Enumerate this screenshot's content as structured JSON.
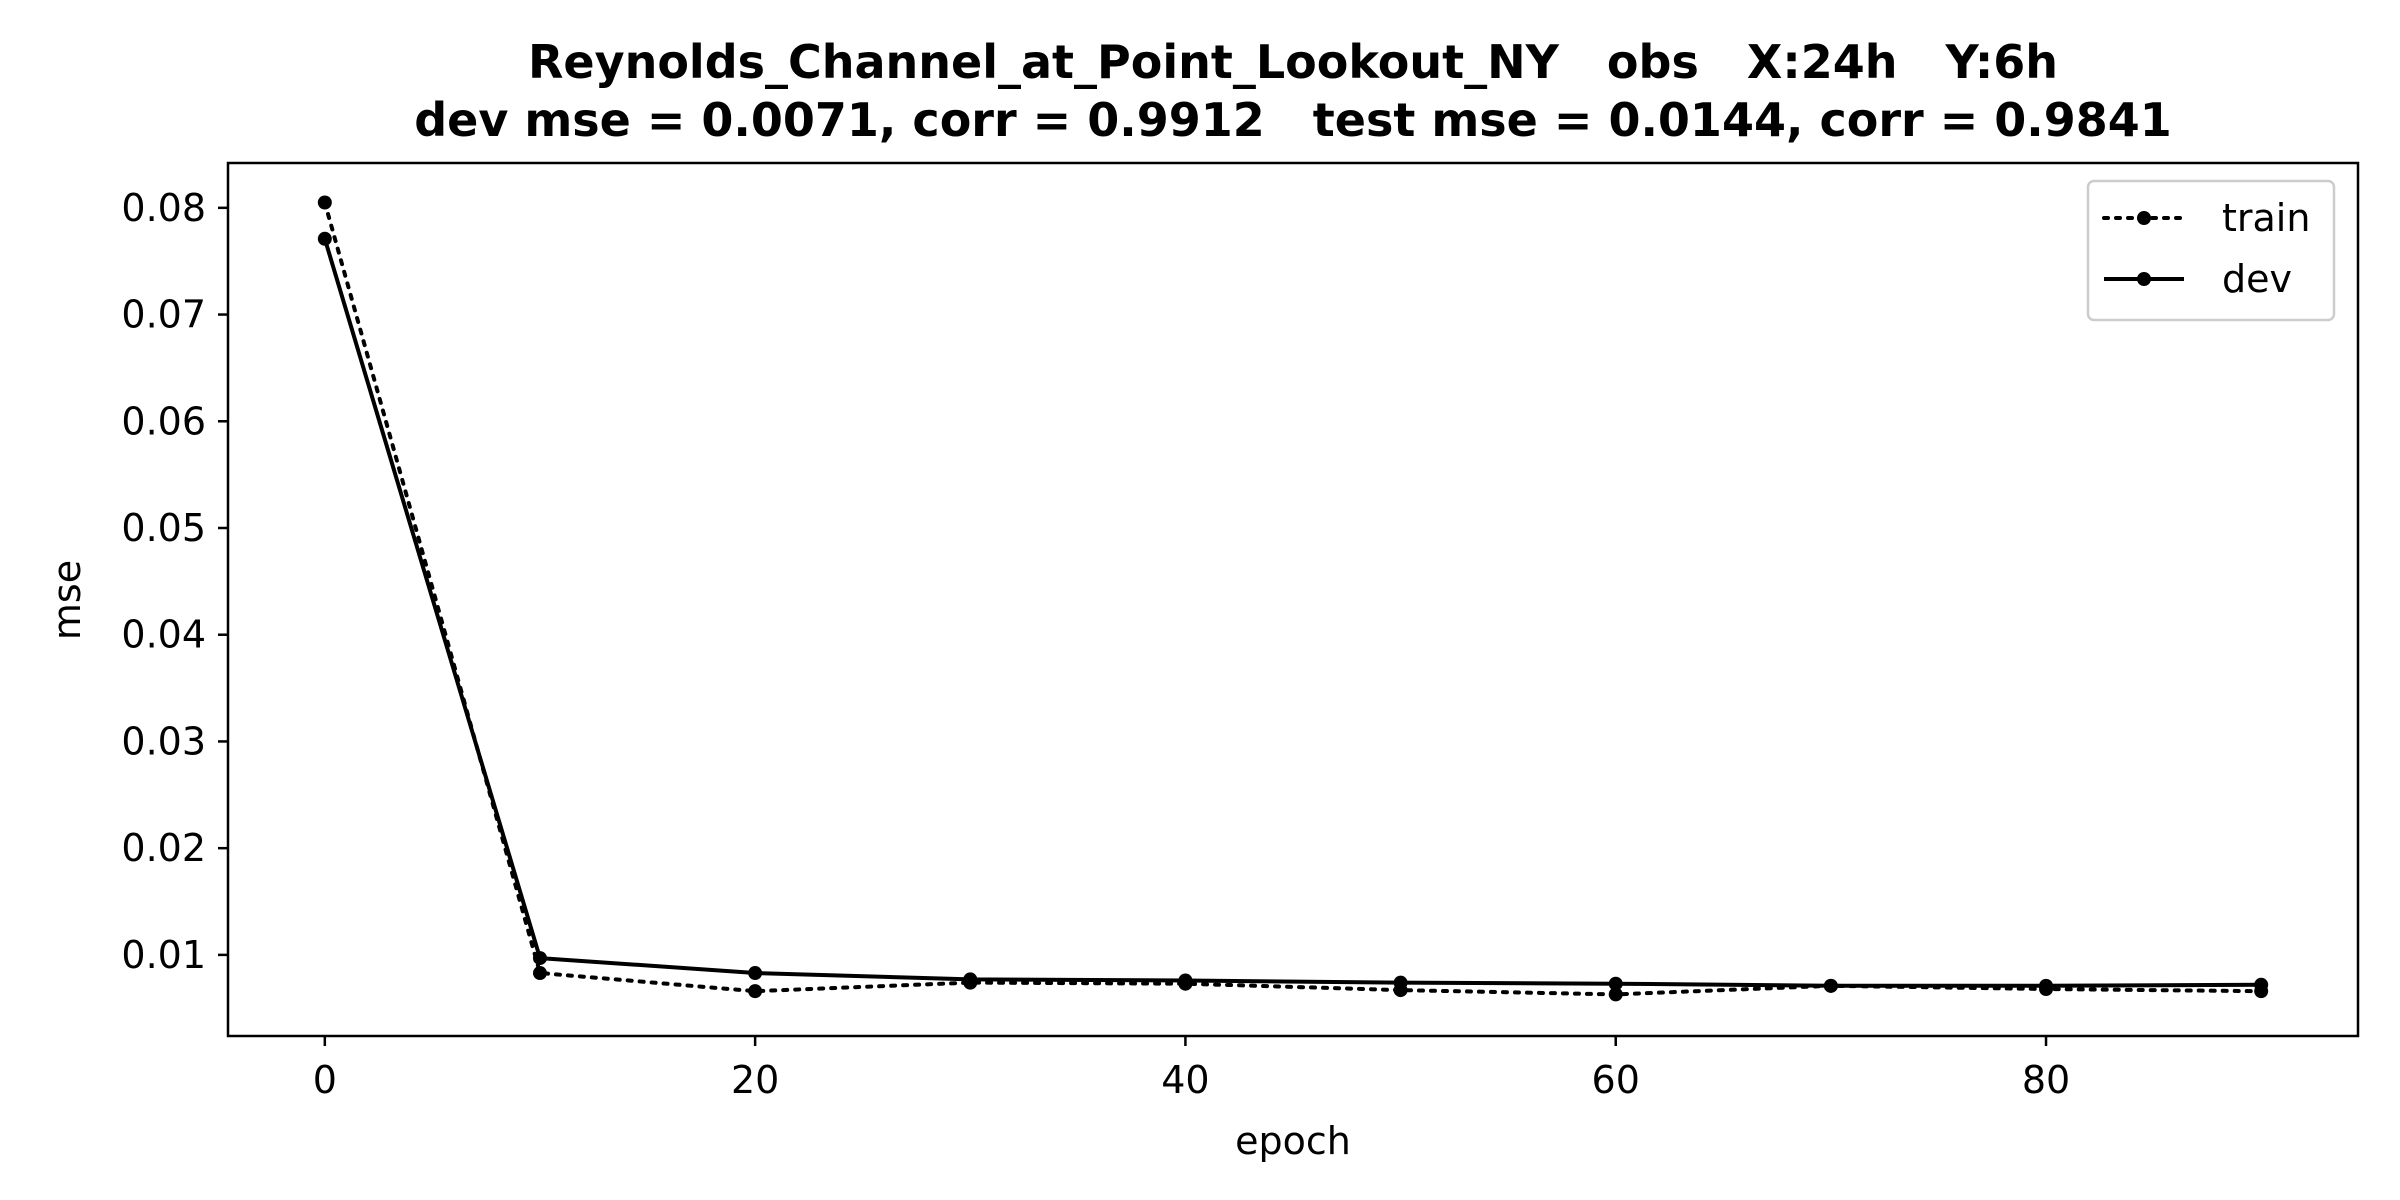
{
  "chart_data": {
    "type": "line",
    "title_line1": "Reynolds_Channel_at_Point_Lookout_NY   obs   X:24h   Y:6h",
    "title_line2": "dev mse = 0.0071, corr = 0.9912   test mse = 0.0144, corr = 0.9841",
    "xlabel": "epoch",
    "ylabel": "mse",
    "xlim": [
      -4.5,
      94.5
    ],
    "ylim": [
      0.0024,
      0.0842
    ],
    "xticks": [
      0,
      20,
      40,
      60,
      80
    ],
    "yticks": [
      0.01,
      0.02,
      0.03,
      0.04,
      0.05,
      0.06,
      0.07,
      0.08
    ],
    "x": [
      0,
      10,
      20,
      30,
      40,
      50,
      60,
      70,
      80,
      90
    ],
    "series": [
      {
        "name": "train",
        "style": "dotted",
        "color": "#000000",
        "values": [
          0.0805,
          0.0083,
          0.0066,
          0.0074,
          0.0073,
          0.0067,
          0.0063,
          0.0071,
          0.0068,
          0.0066
        ]
      },
      {
        "name": "dev",
        "style": "solid",
        "color": "#000000",
        "values": [
          0.0771,
          0.0097,
          0.0083,
          0.0077,
          0.0076,
          0.0074,
          0.0073,
          0.0071,
          0.0071,
          0.0072
        ]
      }
    ],
    "legend_position": "upper right",
    "grid": false
  }
}
